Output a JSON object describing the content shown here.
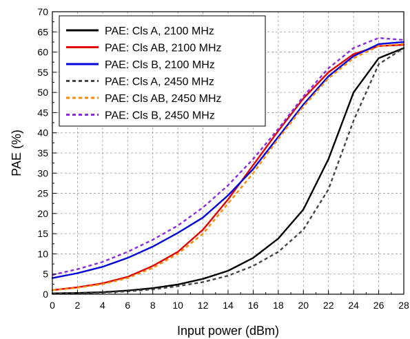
{
  "chart_data": {
    "type": "line",
    "title": "",
    "xlabel": "Input power (dBm)",
    "ylabel": "PAE (%)",
    "xlim": [
      0,
      28
    ],
    "ylim": [
      0,
      70
    ],
    "xticks": [
      0,
      2,
      4,
      6,
      8,
      10,
      12,
      14,
      16,
      18,
      20,
      22,
      24,
      26,
      28
    ],
    "yticks": [
      0,
      5,
      10,
      15,
      20,
      25,
      30,
      35,
      40,
      45,
      50,
      55,
      60,
      65,
      70
    ],
    "grid": "dashed gray",
    "legend_position": "top-left",
    "x": [
      0,
      2,
      4,
      6,
      8,
      10,
      12,
      14,
      16,
      18,
      20,
      22,
      24,
      26,
      28
    ],
    "series": [
      {
        "name": "PAE: Cls A, 2100 MHz",
        "color": "#000000",
        "dash": "solid",
        "values": [
          0.2,
          0.3,
          0.5,
          0.9,
          1.5,
          2.4,
          3.8,
          5.8,
          9.0,
          13.8,
          21.0,
          33.5,
          50.0,
          58.5,
          61.0
        ]
      },
      {
        "name": "PAE: Cls AB, 2100 MHz",
        "color": "#e00000",
        "dash": "solid",
        "values": [
          1.0,
          1.7,
          2.7,
          4.3,
          7.0,
          10.5,
          16.0,
          23.5,
          32.0,
          40.5,
          48.5,
          55.0,
          59.5,
          61.5,
          61.8
        ]
      },
      {
        "name": "PAE: Cls B, 2100 MHz",
        "color": "#0000dd",
        "dash": "solid",
        "values": [
          4.0,
          5.2,
          6.8,
          9.0,
          11.8,
          15.2,
          19.0,
          24.5,
          31.0,
          39.0,
          47.0,
          54.0,
          59.0,
          62.0,
          62.5
        ]
      },
      {
        "name": "PAE: Cls A, 2450 MHz",
        "color": "#444444",
        "dash": "dotted",
        "values": [
          0.1,
          0.2,
          0.4,
          0.7,
          1.2,
          2.0,
          3.0,
          4.6,
          7.0,
          10.5,
          16.0,
          26.0,
          43.0,
          57.0,
          61.0
        ]
      },
      {
        "name": "PAE: Cls AB, 2450 MHz",
        "color": "#ff8800",
        "dash": "dotted",
        "values": [
          1.0,
          1.6,
          2.5,
          4.0,
          6.5,
          10.0,
          15.0,
          22.5,
          30.0,
          38.5,
          46.5,
          53.5,
          58.5,
          61.5,
          62.0
        ]
      },
      {
        "name": "PAE: Cls B, 2450 MHz",
        "color": "#8a2be2",
        "dash": "dotted",
        "values": [
          4.8,
          6.2,
          8.0,
          10.5,
          13.5,
          17.0,
          21.5,
          27.0,
          33.5,
          41.0,
          49.0,
          56.0,
          61.0,
          63.5,
          63.0
        ]
      }
    ]
  }
}
